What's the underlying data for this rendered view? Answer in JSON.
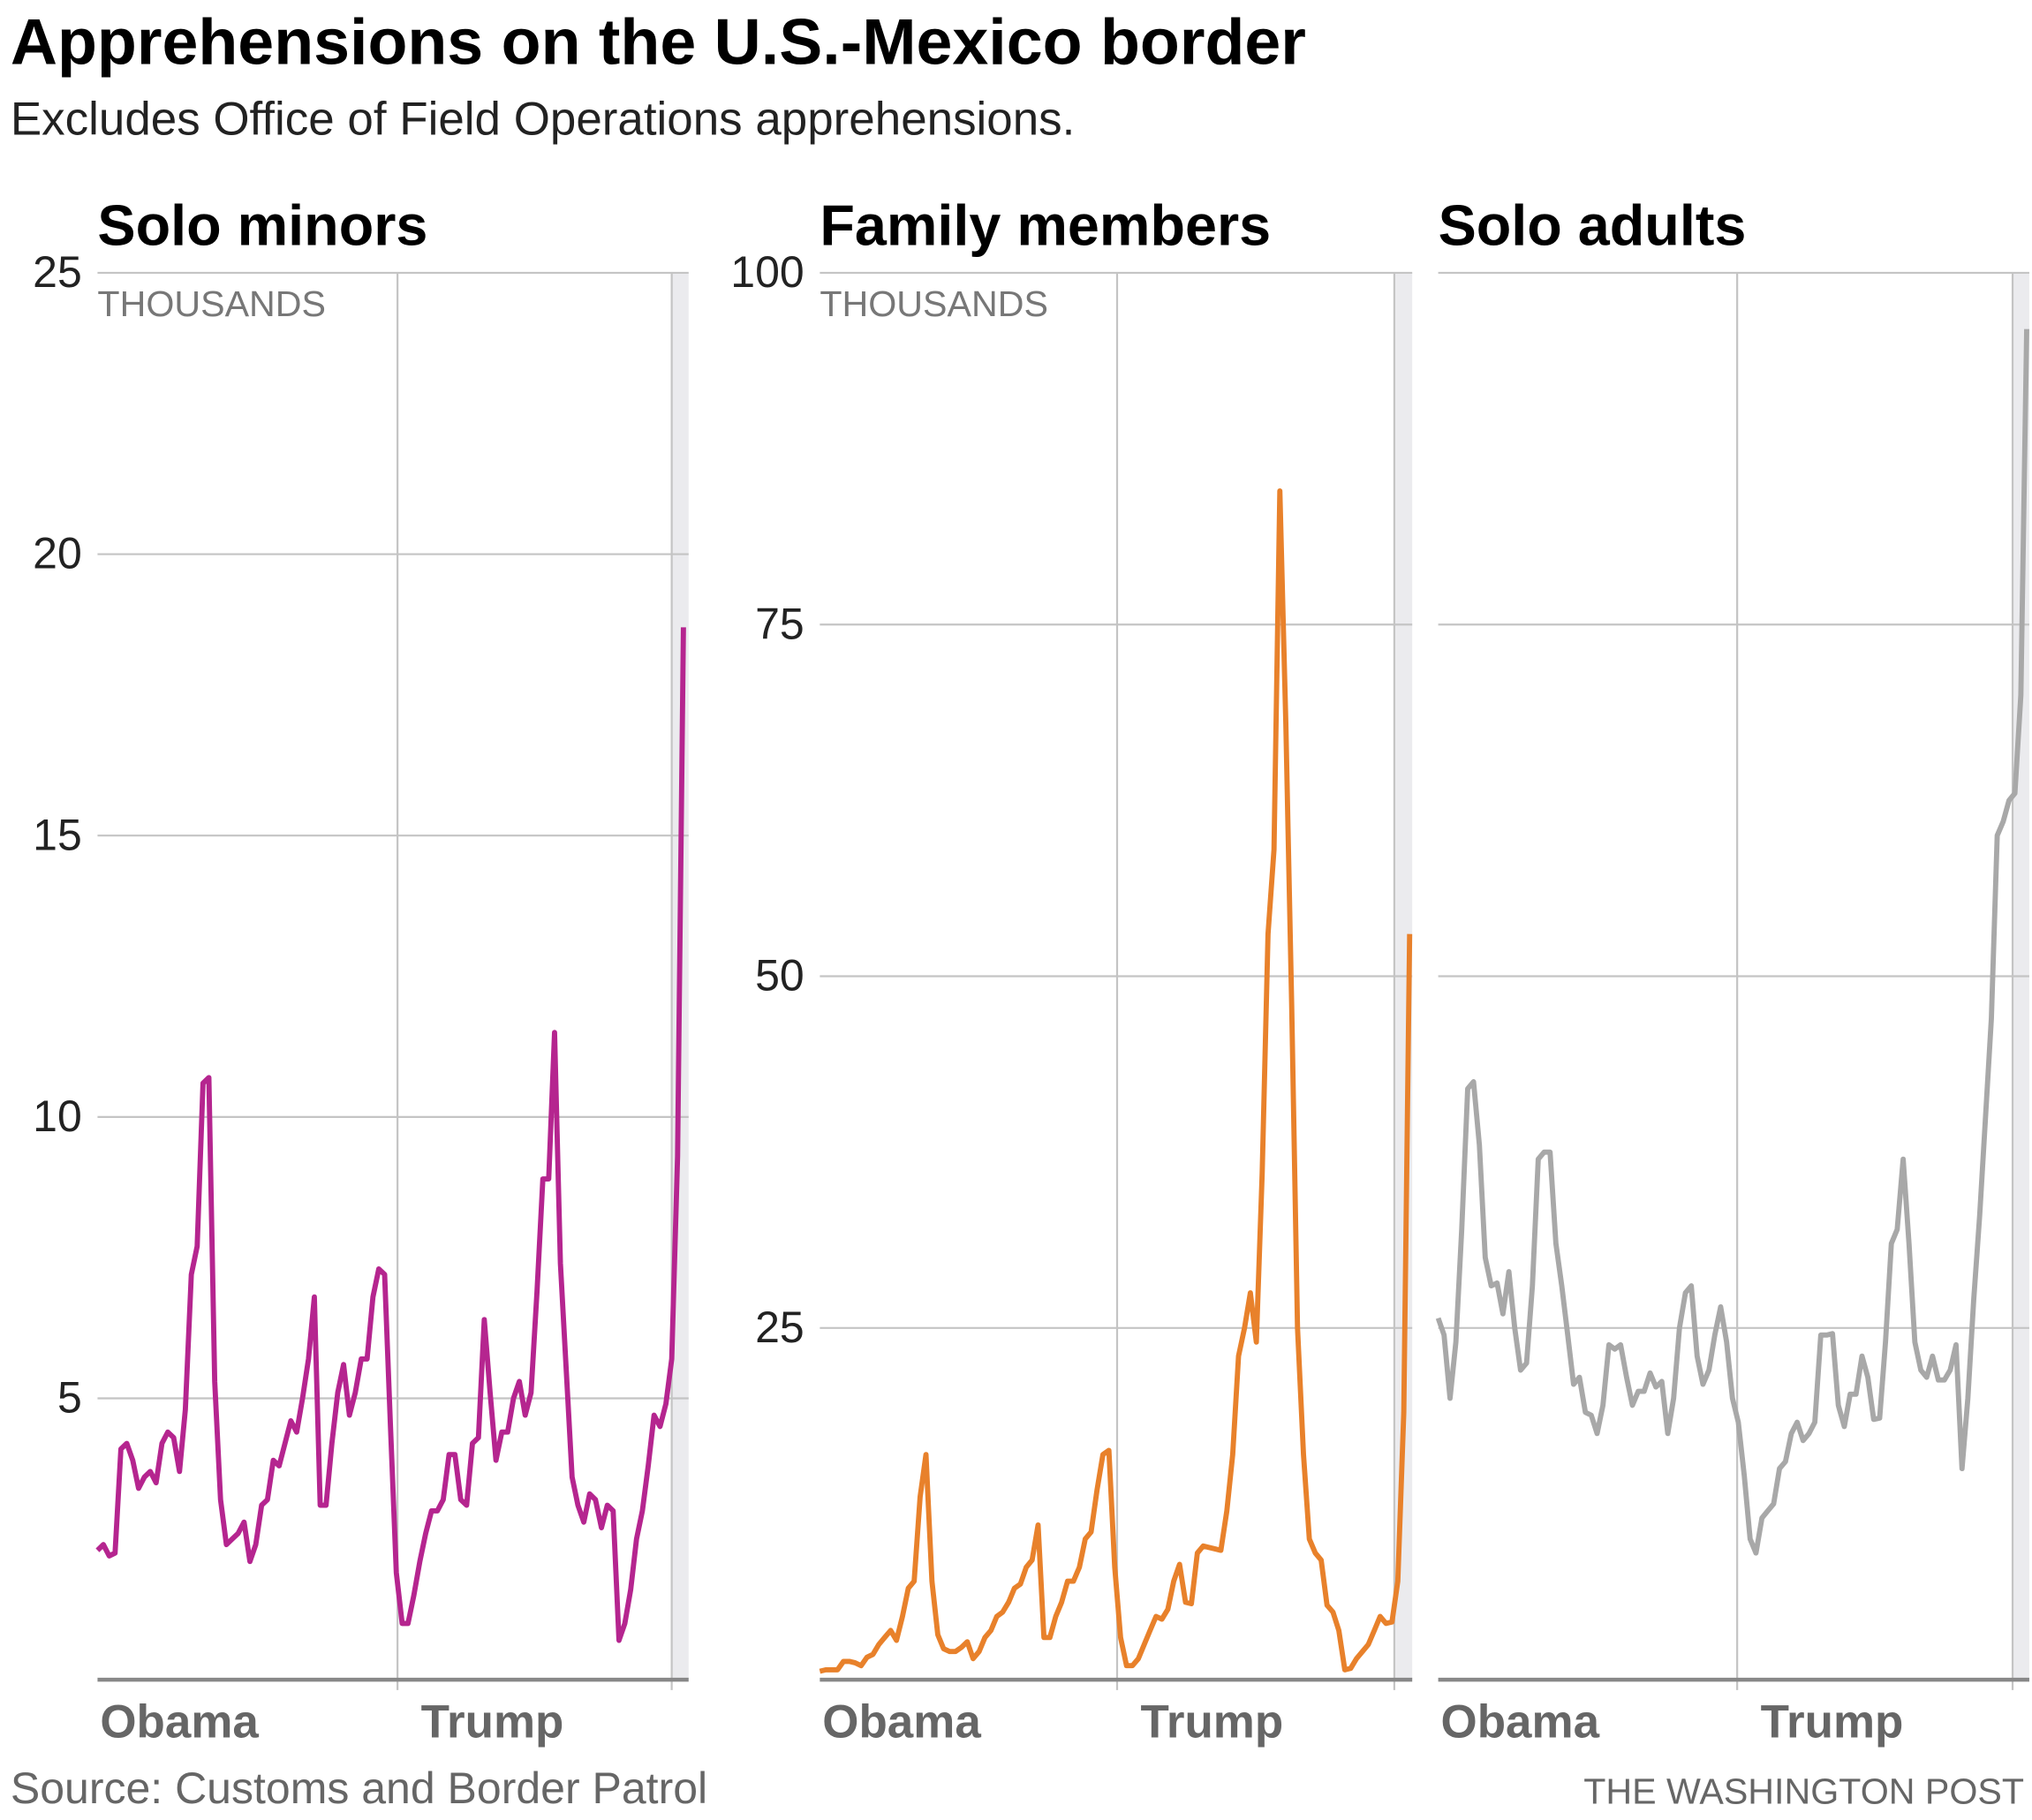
{
  "title": "Apprehensions on the U.S.-Mexico border",
  "subtitle": "Excludes Office of Field Operations apprehensions.",
  "source": "Source: Customs and Border Patrol",
  "credit": "THE WASHINGTON POST",
  "chart_data": [
    {
      "type": "line",
      "title": "Solo minors",
      "unit_label": "THOUSANDS",
      "color": "#b5258f",
      "ylim": [
        0,
        25
      ],
      "yticks": [
        5,
        10,
        15,
        20,
        25
      ],
      "tick_labels": true,
      "grid": true,
      "xlim": [
        0,
        100
      ],
      "eras": [
        {
          "label": "Obama",
          "start": 0
        },
        {
          "label": "Trump",
          "start": 51.2
        },
        {
          "start": 98
        }
      ],
      "values": [
        2.3,
        2.4,
        2.2,
        2.25,
        4.1,
        4.2,
        3.9,
        3.4,
        3.6,
        3.7,
        3.5,
        4.2,
        4.4,
        4.3,
        3.7,
        4.8,
        7.2,
        7.7,
        10.6,
        10.7,
        5.3,
        3.2,
        2.4,
        2.5,
        2.6,
        2.8,
        2.1,
        2.4,
        3.1,
        3.2,
        3.9,
        3.8,
        4.2,
        4.6,
        4.4,
        5.0,
        5.7,
        6.8,
        3.1,
        3.1,
        4.2,
        5.1,
        5.6,
        4.7,
        5.1,
        5.7,
        5.7,
        6.8,
        7.3,
        7.2,
        4.5,
        1.9,
        1.0,
        1.0,
        1.5,
        2.1,
        2.6,
        3.0,
        3.0,
        3.2,
        4.0,
        4.0,
        3.2,
        3.1,
        4.2,
        4.3,
        6.4,
        5.1,
        3.9,
        4.4,
        4.4,
        5.0,
        5.3,
        4.7,
        5.1,
        6.9,
        8.9,
        8.9,
        11.5,
        7.4,
        5.5,
        3.6,
        3.1,
        2.8,
        3.3,
        3.2,
        2.7,
        3.1,
        3.0,
        0.7,
        1.0,
        1.6,
        2.5,
        3.0,
        3.8,
        4.7,
        4.5,
        4.9,
        5.7,
        9.3,
        18.7
      ]
    },
    {
      "type": "line",
      "title": "Family members",
      "unit_label": "THOUSANDS",
      "color": "#e8812b",
      "ylim": [
        0,
        100
      ],
      "yticks": [
        25,
        50,
        75,
        100
      ],
      "tick_labels": true,
      "grid": true,
      "xlim": [
        0,
        100
      ],
      "eras": [
        {
          "label": "Obama",
          "start": 0
        },
        {
          "label": "Trump",
          "start": 50.4
        },
        {
          "start": 97.4
        }
      ],
      "values": [
        0.6,
        0.7,
        0.7,
        0.7,
        1.3,
        1.3,
        1.2,
        1.0,
        1.6,
        1.8,
        2.5,
        3.0,
        3.5,
        2.8,
        4.5,
        6.5,
        7.0,
        13,
        16,
        7,
        3.2,
        2.2,
        2.0,
        2.0,
        2.3,
        2.7,
        1.5,
        2.0,
        3.0,
        3.5,
        4.5,
        4.8,
        5.5,
        6.5,
        6.8,
        8.0,
        8.5,
        11,
        3.0,
        3.0,
        4.5,
        5.5,
        7.0,
        7.0,
        8.0,
        10,
        10.5,
        13.5,
        16.0,
        16.3,
        8,
        3,
        1.0,
        1.0,
        1.5,
        2.5,
        3.5,
        4.5,
        4.3,
        5.0,
        7.0,
        8.2,
        5.5,
        5.4,
        9.0,
        9.5,
        9.4,
        9.3,
        9.2,
        12,
        16,
        23,
        25,
        27.5,
        24,
        36,
        53,
        59,
        84.5,
        68,
        48,
        25,
        16,
        10,
        9.0,
        8.5,
        5.3,
        4.8,
        3.5,
        0.7,
        0.8,
        1.5,
        2.0,
        2.5,
        3.5,
        4.5,
        4.0,
        4.1,
        7.0,
        19,
        53
      ]
    },
    {
      "type": "line",
      "title": "Solo adults",
      "color": "#a8a8a8",
      "ylim": [
        0,
        100
      ],
      "yticks": [
        25,
        50,
        75,
        100
      ],
      "tick_labels": false,
      "grid": true,
      "xlim": [
        0,
        100
      ],
      "eras": [
        {
          "label": "Obama",
          "start": 0
        },
        {
          "label": "Trump",
          "start": 50.8
        },
        {
          "start": 97.6
        }
      ],
      "values": [
        25.7,
        24.5,
        20,
        24,
        32,
        42,
        42.5,
        38,
        30,
        28,
        28.2,
        26,
        29,
        25,
        22,
        22.5,
        28,
        37,
        37.5,
        37.5,
        31,
        28,
        24.5,
        21,
        21.5,
        19,
        18.8,
        17.5,
        19.5,
        23.8,
        23.5,
        23.8,
        21.5,
        19.5,
        20.5,
        20.5,
        21.8,
        20.8,
        21.2,
        17.5,
        20,
        25,
        27.5,
        28,
        23,
        21,
        22,
        24.5,
        26.5,
        24,
        20,
        18.3,
        14.5,
        10,
        9,
        11.5,
        12,
        12.5,
        15,
        15.5,
        17.5,
        18.3,
        17,
        17.5,
        18.3,
        24.5,
        24.5,
        24.6,
        19.5,
        18,
        20.3,
        20.3,
        23,
        21.5,
        18.5,
        18.6,
        24,
        31,
        32,
        37,
        31,
        24,
        22,
        21.5,
        23,
        21.3,
        21.3,
        22,
        23.8,
        15,
        20,
        27,
        33,
        40,
        47,
        60,
        61,
        62.5,
        63,
        70,
        96
      ]
    }
  ]
}
